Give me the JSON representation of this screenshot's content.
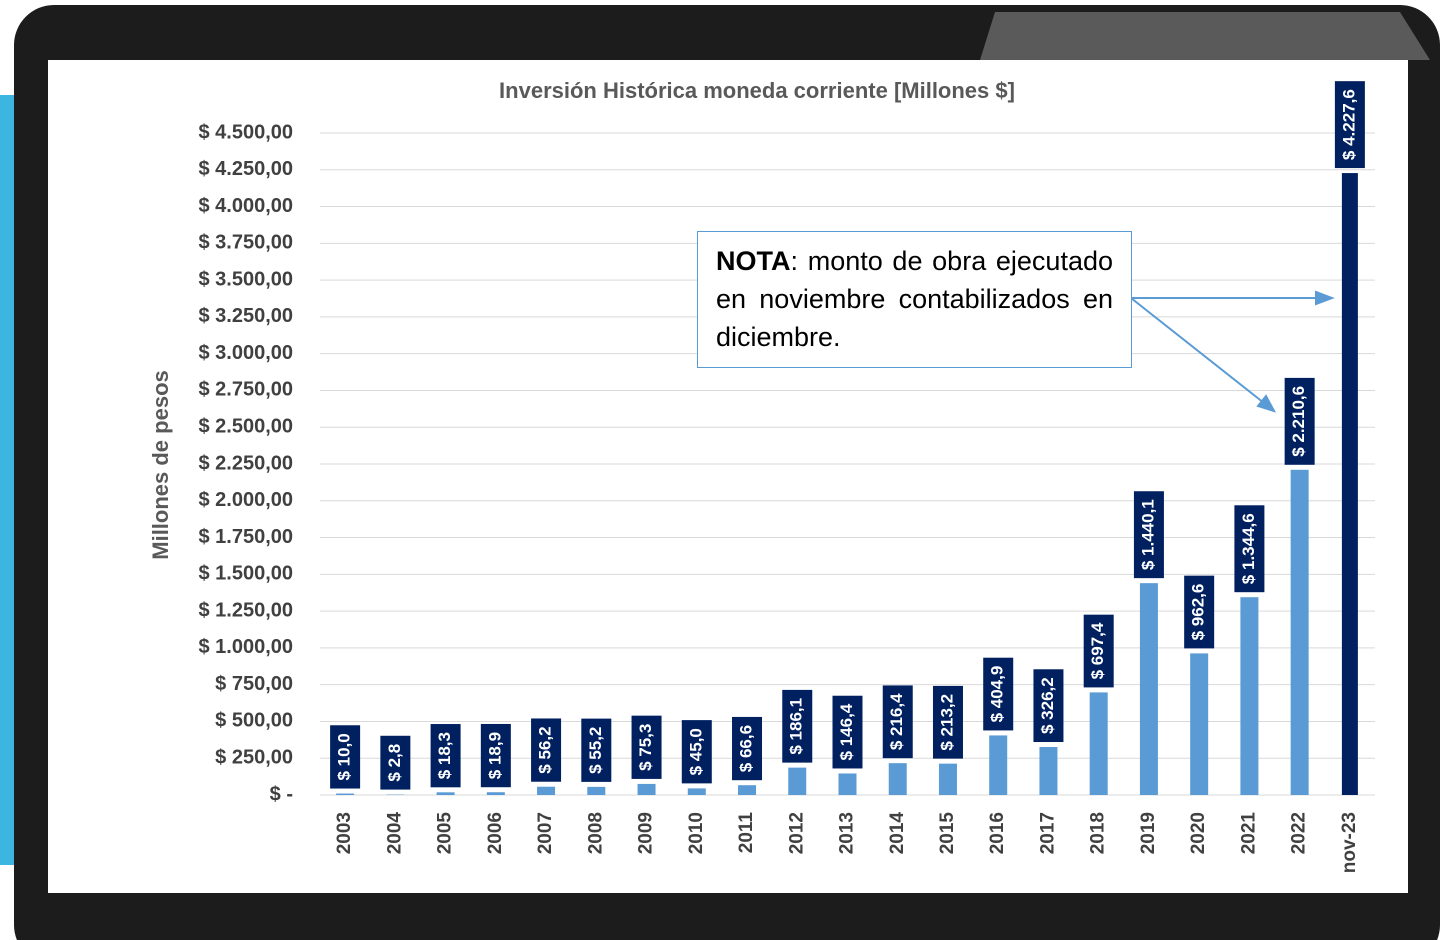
{
  "chart_data": {
    "type": "bar",
    "title": "Inversión Histórica moneda corriente [Millones $]",
    "y_label": "Millones de pesos",
    "note_bold": "NOTA",
    "note_text": ": monto de obra ejecutado en noviembre contabilizados en diciembre.",
    "categories": [
      "2003",
      "2004",
      "2005",
      "2006",
      "2007",
      "2008",
      "2009",
      "2010",
      "2011",
      "2012",
      "2013",
      "2014",
      "2015",
      "2016",
      "2017",
      "2018",
      "2019",
      "2020",
      "2021",
      "2022",
      "nov-23"
    ],
    "values": [
      10.0,
      2.8,
      18.3,
      18.9,
      56.2,
      55.2,
      75.3,
      45.0,
      66.6,
      186.1,
      146.4,
      216.4,
      213.2,
      404.9,
      326.2,
      697.4,
      1440.1,
      962.6,
      1344.6,
      2210.6,
      4227.6
    ],
    "value_labels": [
      "$ 10,0",
      "$ 2,8",
      "$ 18,3",
      "$ 18,9",
      "$ 56,2",
      "$ 55,2",
      "$ 75,3",
      "$ 45,0",
      "$ 66,6",
      "$ 186,1",
      "$ 146,4",
      "$ 216,4",
      "$ 213,2",
      "$ 404,9",
      "$ 326,2",
      "$ 697,4",
      "$ 1.440,1",
      "$ 962,6",
      "$ 1.344,6",
      "$ 2.210,6",
      "$ 4.227,6"
    ],
    "colors": [
      "#5b9bd5",
      "#5b9bd5",
      "#5b9bd5",
      "#5b9bd5",
      "#5b9bd5",
      "#5b9bd5",
      "#5b9bd5",
      "#5b9bd5",
      "#5b9bd5",
      "#5b9bd5",
      "#5b9bd5",
      "#5b9bd5",
      "#5b9bd5",
      "#5b9bd5",
      "#5b9bd5",
      "#5b9bd5",
      "#5b9bd5",
      "#5b9bd5",
      "#5b9bd5",
      "#5b9bd5",
      "#002060"
    ],
    "label_box_color": "#002060",
    "ylim": [
      0,
      4500
    ],
    "yticks": [
      {
        "value": 0,
        "label": "$ -"
      },
      {
        "value": 250,
        "label": "$ 250,00"
      },
      {
        "value": 500,
        "label": "$ 500,00"
      },
      {
        "value": 750,
        "label": "$ 750,00"
      },
      {
        "value": 1000,
        "label": "$ 1.000,00"
      },
      {
        "value": 1250,
        "label": "$ 1.250,00"
      },
      {
        "value": 1500,
        "label": "$ 1.500,00"
      },
      {
        "value": 1750,
        "label": "$ 1.750,00"
      },
      {
        "value": 2000,
        "label": "$ 2.000,00"
      },
      {
        "value": 2250,
        "label": "$ 2.250,00"
      },
      {
        "value": 2500,
        "label": "$ 2.500,00"
      },
      {
        "value": 2750,
        "label": "$ 2.750,00"
      },
      {
        "value": 3000,
        "label": "$ 3.000,00"
      },
      {
        "value": 3250,
        "label": "$ 3.250,00"
      },
      {
        "value": 3500,
        "label": "$ 3.500,00"
      },
      {
        "value": 3750,
        "label": "$ 3.750,00"
      },
      {
        "value": 4000,
        "label": "$ 4.000,00"
      },
      {
        "value": 4250,
        "label": "$ 4.250,00"
      },
      {
        "value": 4500,
        "label": "$ 4.500,00"
      }
    ],
    "grid": true
  }
}
